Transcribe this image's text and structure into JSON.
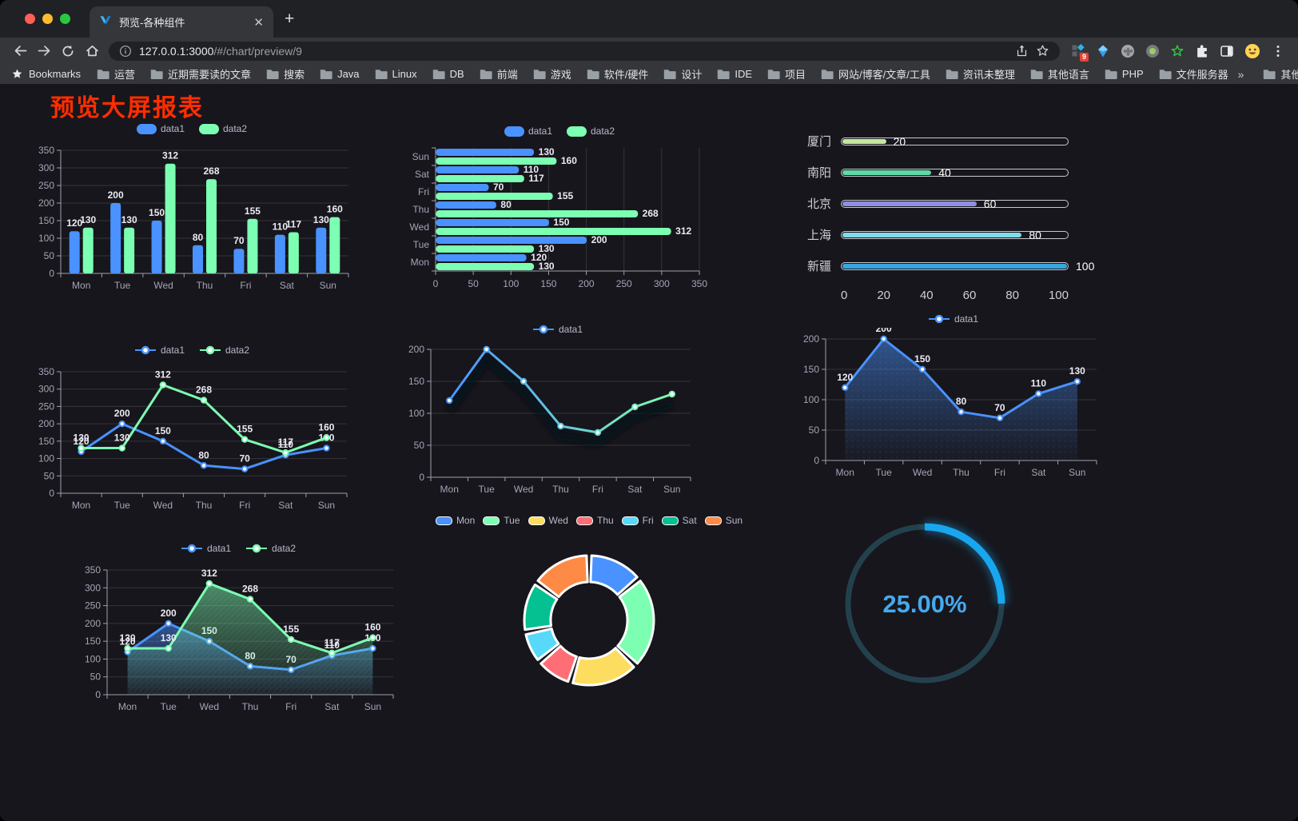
{
  "browser": {
    "tab_title": "预览-各种组件",
    "new_tab_button": "+",
    "url_host": "127.0.0.1:3000",
    "url_path": "/#/chart/preview/9",
    "bookmarks_label": "Bookmarks",
    "bookmarks": [
      "运营",
      "近期需要读的文章",
      "搜索",
      "Java",
      "Linux",
      "DB",
      "前端",
      "游戏",
      "软件/硬件",
      "设计",
      "IDE",
      "项目",
      "网站/博客/文章/工具",
      "资讯未整理",
      "其他语言",
      "PHP",
      "文件服务器"
    ],
    "bookmarks_overflow": "»",
    "other_bookmarks_label": "其他书签",
    "extension_badge": "9"
  },
  "page": {
    "title": "预览大屏报表",
    "title_color": "#ff2e00",
    "background": "#17161c"
  },
  "chart_data": [
    {
      "id": "grouped-bar",
      "type": "bar",
      "categories": [
        "Mon",
        "Tue",
        "Wed",
        "Thu",
        "Fri",
        "Sat",
        "Sun"
      ],
      "series": [
        {
          "name": "data1",
          "color": "#4992ff",
          "values": [
            120,
            200,
            150,
            80,
            70,
            110,
            130
          ]
        },
        {
          "name": "data2",
          "color": "#7cffb2",
          "values": [
            130,
            130,
            312,
            268,
            155,
            117,
            160
          ]
        }
      ],
      "ylim": [
        0,
        350
      ],
      "ytick_step": 50,
      "legend_position": "top",
      "value_labels": true,
      "grid": true
    },
    {
      "id": "grouped-bar-horizontal",
      "type": "bar",
      "orientation": "horizontal",
      "categories": [
        "Mon",
        "Tue",
        "Wed",
        "Thu",
        "Fri",
        "Sat",
        "Sun"
      ],
      "category_display_top_to_bottom": [
        "Sun",
        "Sat",
        "Fri",
        "Thu",
        "Wed",
        "Tue",
        "Mon"
      ],
      "series": [
        {
          "name": "data1",
          "color": "#4992ff",
          "values": [
            120,
            200,
            150,
            80,
            70,
            110,
            130
          ]
        },
        {
          "name": "data2",
          "color": "#7cffb2",
          "values": [
            130,
            130,
            312,
            268,
            155,
            117,
            160
          ]
        }
      ],
      "xlim": [
        0,
        350
      ],
      "xtick_step": 50,
      "legend_position": "top",
      "value_labels": true,
      "grid": true
    },
    {
      "id": "city-progress",
      "type": "bar",
      "style": "progress",
      "items": [
        {
          "label": "厦门",
          "value": 20,
          "color": "#c5e89e"
        },
        {
          "label": "南阳",
          "value": 40,
          "color": "#5fd9a5"
        },
        {
          "label": "北京",
          "value": 60,
          "color": "#8f90e2"
        },
        {
          "label": "上海",
          "value": 80,
          "color": "#7fdce9"
        },
        {
          "label": "新疆",
          "value": 100,
          "color": "#38a5de"
        }
      ],
      "xlim": [
        0,
        100
      ],
      "xticks": [
        0,
        20,
        40,
        60,
        80,
        100
      ]
    },
    {
      "id": "multi-line",
      "type": "line",
      "categories": [
        "Mon",
        "Tue",
        "Wed",
        "Thu",
        "Fri",
        "Sat",
        "Sun"
      ],
      "series": [
        {
          "name": "data1",
          "color": "#4992ff",
          "values": [
            120,
            200,
            150,
            80,
            70,
            110,
            130
          ]
        },
        {
          "name": "data2",
          "color": "#7cffb2",
          "values": [
            130,
            130,
            312,
            268,
            155,
            117,
            160
          ]
        }
      ],
      "ylim": [
        0,
        350
      ],
      "ytick_step": 50,
      "legend_position": "top",
      "value_labels": true,
      "grid": true
    },
    {
      "id": "gradient-line",
      "type": "line",
      "categories": [
        "Mon",
        "Tue",
        "Wed",
        "Thu",
        "Fri",
        "Sat",
        "Sun"
      ],
      "series": [
        {
          "name": "data1",
          "color_gradient": [
            "#4992ff",
            "#7cffb2"
          ],
          "values": [
            120,
            200,
            150,
            80,
            70,
            110,
            130
          ]
        }
      ],
      "ylim": [
        0,
        200
      ],
      "ytick_step": 50,
      "legend_position": "top",
      "value_labels": false,
      "grid": true
    },
    {
      "id": "single-area",
      "type": "area",
      "categories": [
        "Mon",
        "Tue",
        "Wed",
        "Thu",
        "Fri",
        "Sat",
        "Sun"
      ],
      "series": [
        {
          "name": "data1",
          "color": "#4992ff",
          "values": [
            120,
            200,
            150,
            80,
            70,
            110,
            130
          ]
        }
      ],
      "ylim": [
        0,
        200
      ],
      "ytick_step": 50,
      "legend_position": "top",
      "value_labels": true,
      "grid": true
    },
    {
      "id": "double-area",
      "type": "area",
      "categories": [
        "Mon",
        "Tue",
        "Wed",
        "Thu",
        "Fri",
        "Sat",
        "Sun"
      ],
      "series": [
        {
          "name": "data1",
          "color": "#4992ff",
          "values": [
            120,
            200,
            150,
            80,
            70,
            110,
            130
          ]
        },
        {
          "name": "data2",
          "color": "#7cffb2",
          "values": [
            130,
            130,
            312,
            268,
            155,
            117,
            160
          ]
        }
      ],
      "ylim": [
        0,
        350
      ],
      "ytick_step": 50,
      "legend_position": "top",
      "value_labels": true,
      "grid": true
    },
    {
      "id": "weekday-donut",
      "type": "pie",
      "inner_radius_ratio": 0.59,
      "categories": [
        "Mon",
        "Tue",
        "Wed",
        "Thu",
        "Fri",
        "Sat",
        "Sun"
      ],
      "values": [
        120,
        200,
        150,
        80,
        70,
        110,
        130
      ],
      "colors": [
        "#4992ff",
        "#7cffb2",
        "#fddd60",
        "#ff6e76",
        "#58d9f9",
        "#05c091",
        "#ff8a45"
      ],
      "legend_position": "top"
    },
    {
      "id": "progress-gauge",
      "type": "gauge",
      "value": 25,
      "max": 100,
      "display": "25.00%",
      "arc_color": "#19a6ee",
      "track_color": "#23414d",
      "text_color": "#45a9ee"
    }
  ]
}
